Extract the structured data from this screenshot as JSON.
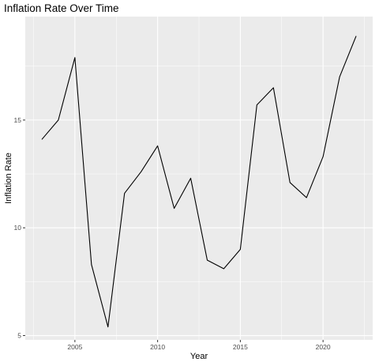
{
  "chart_data": {
    "type": "line",
    "title": "Inflation Rate Over Time",
    "xlabel": "Year",
    "ylabel": "Inflation Rate",
    "xlim": [
      2002,
      2023
    ],
    "ylim": [
      4.8,
      19.8
    ],
    "xticks": [
      2005,
      2010,
      2015,
      2020
    ],
    "yticks": [
      5,
      10,
      15
    ],
    "grid": true,
    "legend": "none",
    "line_color": "#000000",
    "panel_color": "#ebebeb",
    "series": [
      {
        "x": [
          2003,
          2004,
          2005,
          2006,
          2007,
          2008,
          2009,
          2010,
          2011,
          2012,
          2013,
          2014,
          2015,
          2016,
          2017,
          2018,
          2019,
          2020,
          2021,
          2022
        ],
        "values": [
          14.1,
          15.0,
          17.9,
          8.3,
          5.4,
          11.6,
          12.6,
          13.8,
          10.9,
          12.3,
          8.5,
          8.1,
          9.0,
          15.7,
          16.5,
          12.1,
          11.4,
          13.3,
          17.0,
          18.9
        ]
      }
    ]
  }
}
